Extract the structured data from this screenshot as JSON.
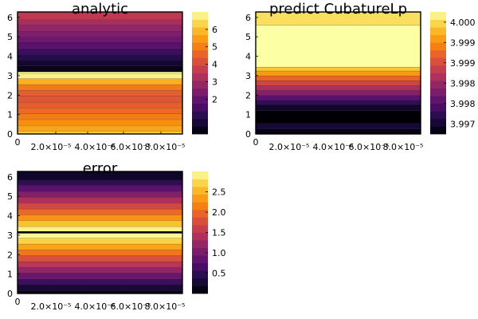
{
  "chart_data": [
    {
      "type": "heatmap",
      "title": "analytic",
      "x_ticks": [
        "0",
        "2.0×10⁻⁵",
        "4.0×10⁻⁶",
        "6.0×10⁻⁵",
        "8.0×10⁻⁵"
      ],
      "y_ticks": [
        "0",
        "1",
        "2",
        "3",
        "4",
        "5",
        "6"
      ],
      "ylim": [
        0,
        6.28
      ],
      "colorbar": {
        "ticks": [
          "2",
          "3",
          "4",
          "5",
          "6"
        ],
        "range": [
          0.0,
          7.0
        ]
      },
      "bands": [
        {
          "y0": 0.0,
          "y1": 0.15,
          "value": 6.2
        },
        {
          "y0": 0.15,
          "y1": 0.45,
          "value": 5.6
        },
        {
          "y0": 0.45,
          "y1": 0.75,
          "value": 5.3
        },
        {
          "y0": 0.75,
          "y1": 1.05,
          "value": 5.0
        },
        {
          "y0": 1.05,
          "y1": 1.35,
          "value": 4.7
        },
        {
          "y0": 1.35,
          "y1": 1.65,
          "value": 4.5
        },
        {
          "y0": 1.65,
          "y1": 1.95,
          "value": 4.3
        },
        {
          "y0": 1.95,
          "y1": 2.25,
          "value": 4.5
        },
        {
          "y0": 2.25,
          "y1": 2.55,
          "value": 5.0
        },
        {
          "y0": 2.55,
          "y1": 2.85,
          "value": 5.8
        },
        {
          "y0": 2.85,
          "y1": 3.1,
          "value": 6.8
        },
        {
          "y0": 3.1,
          "y1": 3.2,
          "value": 6.9
        },
        {
          "y0": 3.2,
          "y1": 3.5,
          "value": 0.3
        },
        {
          "y0": 3.5,
          "y1": 3.8,
          "value": 0.6
        },
        {
          "y0": 3.8,
          "y1": 4.1,
          "value": 1.0
        },
        {
          "y0": 4.1,
          "y1": 4.4,
          "value": 1.4
        },
        {
          "y0": 4.4,
          "y1": 4.7,
          "value": 1.8
        },
        {
          "y0": 4.7,
          "y1": 5.0,
          "value": 2.2
        },
        {
          "y0": 5.0,
          "y1": 5.3,
          "value": 2.5
        },
        {
          "y0": 5.3,
          "y1": 5.6,
          "value": 2.8
        },
        {
          "y0": 5.6,
          "y1": 5.9,
          "value": 3.2
        },
        {
          "y0": 5.9,
          "y1": 6.28,
          "value": 3.6
        }
      ]
    },
    {
      "type": "heatmap",
      "title": "predict CubatureLp",
      "x_ticks": [
        "0",
        "2.0×10⁻⁵",
        "4.0×10⁻⁶",
        "6.0×10⁻⁵",
        "8.0×10⁻⁵"
      ],
      "y_ticks": [
        "0",
        "1",
        "2",
        "3",
        "4",
        "5",
        "6"
      ],
      "ylim": [
        0,
        6.28
      ],
      "colorbar": {
        "ticks": [
          "3.997",
          "3.998",
          "3.998",
          "3.999",
          "3.999",
          "4.000"
        ],
        "range": [
          3.9965,
          4.0006
        ]
      },
      "bands": [
        {
          "y0": 0.0,
          "y1": 0.25,
          "value": 3.9966
        },
        {
          "y0": 0.25,
          "y1": 0.55,
          "value": 3.9969
        },
        {
          "y0": 0.55,
          "y1": 1.2,
          "value": 3.9965
        },
        {
          "y0": 1.2,
          "y1": 1.5,
          "value": 3.9968
        },
        {
          "y0": 1.5,
          "y1": 1.75,
          "value": 3.9972
        },
        {
          "y0": 1.75,
          "y1": 2.0,
          "value": 3.9976
        },
        {
          "y0": 2.0,
          "y1": 2.25,
          "value": 3.998
        },
        {
          "y0": 2.25,
          "y1": 2.5,
          "value": 3.9984
        },
        {
          "y0": 2.5,
          "y1": 2.75,
          "value": 3.9988
        },
        {
          "y0": 2.75,
          "y1": 3.0,
          "value": 3.9992
        },
        {
          "y0": 3.0,
          "y1": 3.25,
          "value": 3.9997
        },
        {
          "y0": 3.25,
          "y1": 3.45,
          "value": 4.0001
        },
        {
          "y0": 3.45,
          "y1": 5.6,
          "value": 4.0006
        },
        {
          "y0": 5.6,
          "y1": 6.28,
          "value": 4.0003
        }
      ]
    },
    {
      "type": "heatmap",
      "title": "error",
      "x_ticks": [
        "0",
        "2.0×10⁻⁵",
        "4.0×10⁻⁶",
        "6.0×10⁻⁵",
        "8.0×10⁻⁵"
      ],
      "y_ticks": [
        "0",
        "1",
        "2",
        "3",
        "4",
        "5",
        "6"
      ],
      "ylim": [
        0,
        6.28
      ],
      "colorbar": {
        "ticks": [
          "0.5",
          "1.0",
          "1.5",
          "2.0",
          "2.5"
        ],
        "range": [
          0.0,
          3.0
        ]
      },
      "bands": [
        {
          "y0": 0.0,
          "y1": 0.15,
          "value": 0.1
        },
        {
          "y0": 0.15,
          "y1": 0.45,
          "value": 0.3
        },
        {
          "y0": 0.45,
          "y1": 0.75,
          "value": 0.6
        },
        {
          "y0": 0.75,
          "y1": 1.05,
          "value": 0.9
        },
        {
          "y0": 1.05,
          "y1": 1.35,
          "value": 1.2
        },
        {
          "y0": 1.35,
          "y1": 1.65,
          "value": 1.5
        },
        {
          "y0": 1.65,
          "y1": 1.95,
          "value": 1.8
        },
        {
          "y0": 1.95,
          "y1": 2.25,
          "value": 2.1
        },
        {
          "y0": 2.25,
          "y1": 2.55,
          "value": 2.4
        },
        {
          "y0": 2.55,
          "y1": 2.85,
          "value": 2.7
        },
        {
          "y0": 2.85,
          "y1": 3.1,
          "value": 2.95
        },
        {
          "y0": 3.1,
          "y1": 3.2,
          "value": 0.0
        },
        {
          "y0": 3.2,
          "y1": 3.45,
          "value": 2.9
        },
        {
          "y0": 3.45,
          "y1": 3.75,
          "value": 2.6
        },
        {
          "y0": 3.75,
          "y1": 4.05,
          "value": 2.3
        },
        {
          "y0": 4.05,
          "y1": 4.35,
          "value": 2.0
        },
        {
          "y0": 4.35,
          "y1": 4.65,
          "value": 1.7
        },
        {
          "y0": 4.65,
          "y1": 4.95,
          "value": 1.4
        },
        {
          "y0": 4.95,
          "y1": 5.25,
          "value": 1.1
        },
        {
          "y0": 5.25,
          "y1": 5.55,
          "value": 0.8
        },
        {
          "y0": 5.55,
          "y1": 5.85,
          "value": 0.5
        },
        {
          "y0": 5.85,
          "y1": 6.28,
          "value": 0.2
        }
      ]
    }
  ]
}
